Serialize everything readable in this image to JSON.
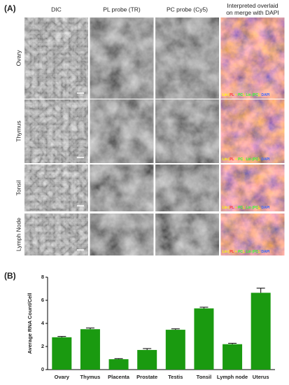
{
  "panel_a": {
    "label": "(A)",
    "columns": [
      "DIC",
      "PL probe (TR)",
      "PC probe (Cy5)",
      "Interpreted overlaid on merge with DAPI"
    ],
    "rows": [
      "Ovary",
      "Thymus",
      "Tonsil",
      "Lymph Node"
    ],
    "legend_segments": [
      "Lin (",
      "PL",
      " + ",
      "PC",
      "), ",
      "Lin",
      " (",
      "PC",
      "), ",
      "DAPI"
    ]
  },
  "panel_b": {
    "label": "(B)"
  },
  "chart_data": {
    "type": "bar",
    "ylabel": "Average RNA Count/Cell",
    "categories": [
      "Ovary",
      "Thymus",
      "Placenta",
      "Prostate",
      "Testis",
      "Tonsil",
      "Lymph node",
      "Uterus"
    ],
    "values": [
      2.8,
      3.5,
      0.9,
      1.7,
      3.45,
      5.3,
      2.2,
      6.65
    ],
    "errors": [
      0.07,
      0.1,
      0.05,
      0.12,
      0.08,
      0.1,
      0.08,
      0.4
    ],
    "color": "#1a9a10",
    "ylim": [
      0,
      8
    ],
    "yticks": [
      0,
      2,
      4,
      6,
      8
    ]
  }
}
